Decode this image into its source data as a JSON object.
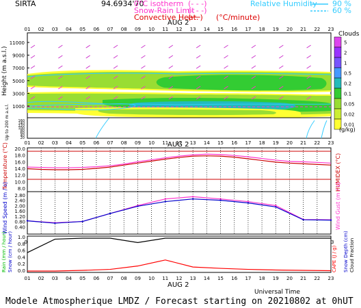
{
  "header": {
    "site": "SIRTA",
    "coords": "94.6934'70",
    "legend_items": [
      {
        "label": "0°C isotherm",
        "symbol": "(- - -)",
        "color": "#ff33cc"
      },
      {
        "label": "Snow-Rain Limit",
        "symbol": "(- - -)",
        "color": "#ff33cc"
      },
      {
        "label": "Convective Heat.",
        "symbol": "(──)",
        "color": "#dd0000",
        "units": "(°C/minute)"
      }
    ],
    "rh_title": "Relative Humidity",
    "rh_levels": [
      {
        "label": "90 %",
        "color": "#33ccff"
      },
      {
        "label": "60 %",
        "color": "#33ccff"
      }
    ]
  },
  "hours": [
    "01",
    "02",
    "03",
    "04",
    "05",
    "06",
    "07",
    "08",
    "09",
    "10",
    "11",
    "12",
    "13",
    "14",
    "15",
    "16",
    "17",
    "18",
    "19",
    "20",
    "21",
    "22",
    "23"
  ],
  "day_label": "AUG  2",
  "footer": {
    "universal_time": "Universal Time",
    "caption": "Modele Atmospherique LMDZ / Forecast starting on 20210802 at 0hUT"
  },
  "chart_data": [
    {
      "type": "heatmap",
      "panel": "clouds",
      "ylabel": "Height  (m a.s.l.)",
      "ylabel_lower": "Up to 200 m a.s.l.",
      "yticks_upper": [
        "11000",
        "9000",
        "7000",
        "5000",
        "3000",
        "1000"
      ],
      "yticks_lower": [
        "160",
        "140",
        "120",
        "100",
        "80",
        "60",
        "40",
        "20"
      ],
      "colorbar_title": "Clouds",
      "colorbar_units": "(g/kg)",
      "colorbar_levels": [
        "5",
        "2",
        "1",
        "0.5",
        "0.2",
        "0.1",
        "0.05",
        "0.02",
        "0.01"
      ],
      "colorbar_colors": [
        "#dd44ee",
        "#9933ff",
        "#7755ff",
        "#4499ff",
        "#22bbbb",
        "#33cc33",
        "#99dd33",
        "#ccee33",
        "#ffff33"
      ],
      "yrange": [
        0,
        12000
      ]
    },
    {
      "type": "line",
      "panel": "temperature",
      "ylabel_left": "Temperature (°C)",
      "ylabel_right": "HUMIDEX (°C)",
      "ylim": [
        8,
        20
      ],
      "yticks": [
        "20.0",
        "18.0",
        "16.0",
        "14.0",
        "12.0",
        "10.0",
        "8.0"
      ],
      "x": [
        1,
        2,
        3,
        4,
        5,
        6,
        7,
        8,
        9,
        10,
        11,
        12,
        13,
        14,
        15,
        16,
        17,
        18,
        19,
        20,
        21,
        22,
        23
      ],
      "series": [
        {
          "name": "HUMIDEX",
          "color": "#ff33cc",
          "values": [
            14.6,
            14.5,
            14.4,
            14.4,
            14.5,
            14.7,
            15.0,
            15.5,
            16.2,
            16.8,
            17.4,
            17.9,
            18.3,
            18.5,
            18.4,
            18.1,
            17.7,
            17.2,
            16.7,
            16.3,
            16.2,
            16.0,
            15.8
          ]
        },
        {
          "name": "Temperature",
          "color": "#cc0000",
          "values": [
            14.1,
            13.9,
            13.8,
            13.8,
            13.9,
            14.2,
            14.6,
            15.2,
            15.8,
            16.4,
            17.0,
            17.5,
            17.9,
            18.0,
            17.9,
            17.6,
            17.1,
            16.6,
            16.1,
            15.8,
            15.6,
            15.4,
            15.2
          ]
        }
      ]
    },
    {
      "type": "line",
      "panel": "wind",
      "ylabel_left": "Wind Speed (m / s)",
      "ylabel_right": "Wind Gust (m / s)",
      "ylim": [
        0,
        3.0
      ],
      "yticks": [
        "2.80",
        "2.40",
        "2.00",
        "1.60",
        "1.20",
        "0.80",
        "0.40"
      ],
      "x": [
        1,
        3,
        5,
        7,
        9,
        11,
        13,
        15,
        17,
        19,
        21,
        23
      ],
      "series": [
        {
          "name": "Wind Gust",
          "color": "#ff33cc",
          "values": [
            0.9,
            0.75,
            0.85,
            1.45,
            2.05,
            2.55,
            2.72,
            2.55,
            2.35,
            2.05,
            1.0,
            0.98
          ]
        },
        {
          "name": "Wind Speed",
          "color": "#0000cc",
          "values": [
            0.9,
            0.72,
            0.85,
            1.45,
            2.0,
            2.35,
            2.55,
            2.45,
            2.25,
            1.95,
            0.98,
            0.95
          ]
        }
      ]
    },
    {
      "type": "line",
      "panel": "precip",
      "ylabel_left": "Rain (mm / hour)",
      "ylabel_left2": "Snow (cm / hour)",
      "ylabel_right": "CAPE (J / g)",
      "ylabel_right2": "Snow Depth (cm)",
      "ylabel_right3": "Cloud Fraction",
      "ylim": [
        0,
        1.0
      ],
      "yticks": [
        "1.0",
        "0.8",
        "0.6",
        "0.4",
        "0.2",
        "0.0"
      ],
      "x": [
        1,
        3,
        5,
        7,
        9,
        11,
        13,
        15,
        17,
        19,
        21,
        23
      ],
      "series": [
        {
          "name": "Cloud Fraction",
          "color": "#000000",
          "values": [
            0.55,
            0.95,
            0.98,
            0.98,
            0.85,
            0.98,
            0.98,
            0.98,
            0.98,
            0.98,
            0.98,
            0.98
          ]
        },
        {
          "name": "CAPE",
          "color": "#ff0000",
          "values": [
            0.0,
            0.0,
            0.02,
            0.05,
            0.15,
            0.33,
            0.12,
            0.08,
            0.05,
            0.03,
            0.02,
            0.01
          ]
        }
      ]
    }
  ]
}
